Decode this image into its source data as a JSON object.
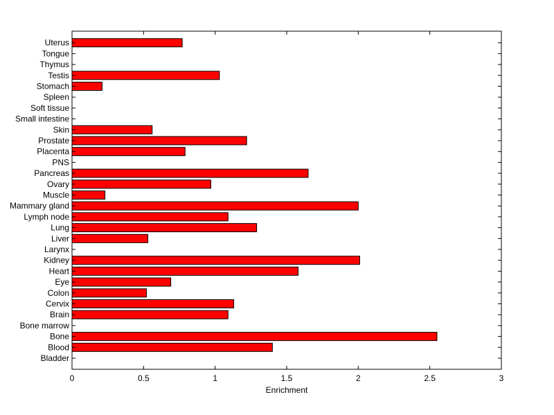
{
  "colors": {
    "bar_fill": "#ff0000",
    "bar_stroke": "#000000",
    "axis": "#000000",
    "background": "#ffffff"
  },
  "chart_data": {
    "type": "bar",
    "orientation": "horizontal",
    "title": "",
    "xlabel": "Enrichment",
    "ylabel": "",
    "xlim": [
      0,
      3
    ],
    "xticks": [
      "0",
      "0.5",
      "1",
      "1.5",
      "2",
      "2.5",
      "3"
    ],
    "xtick_values": [
      0,
      0.5,
      1,
      1.5,
      2,
      2.5,
      3
    ],
    "grid": false,
    "legend": "none",
    "categories": [
      "Bladder",
      "Blood",
      "Bone",
      "Bone marrow",
      "Brain",
      "Cervix",
      "Colon",
      "Eye",
      "Heart",
      "Kidney",
      "Larynx",
      "Liver",
      "Lung",
      "Lymph node",
      "Mammary gland",
      "Muscle",
      "Ovary",
      "Pancreas",
      "PNS",
      "Placenta",
      "Prostate",
      "Skin",
      "Small intestine",
      "Soft tissue",
      "Spleen",
      "Stomach",
      "Testis",
      "Thymus",
      "Tongue",
      "Uterus"
    ],
    "values": [
      0,
      1.4,
      2.55,
      0,
      1.09,
      1.13,
      0.52,
      0.69,
      1.58,
      2.01,
      0,
      0.53,
      1.29,
      1.09,
      2.0,
      0.23,
      0.97,
      1.65,
      0,
      0.79,
      1.22,
      0.56,
      0,
      0,
      0,
      0.21,
      1.03,
      0,
      0,
      0.77
    ]
  }
}
